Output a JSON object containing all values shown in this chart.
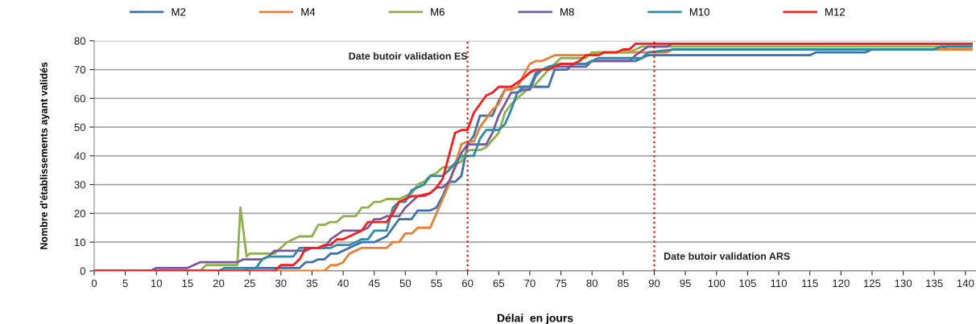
{
  "chart_data": {
    "type": "line",
    "xlabel": "Délai  en jours",
    "ylabel": "Nombre d'établissements ayant validés",
    "xlim": [
      0,
      141.7
    ],
    "ylim": [
      0,
      80
    ],
    "xticks": [
      0,
      5,
      10,
      15,
      20,
      25,
      30,
      35,
      40,
      45,
      50,
      55,
      60,
      65,
      70,
      75,
      80,
      85,
      90,
      95,
      100,
      105,
      110,
      115,
      120,
      125,
      130,
      135,
      140
    ],
    "yticks": [
      0,
      10,
      20,
      30,
      40,
      50,
      60,
      70,
      80
    ],
    "grid": "y",
    "legend": "top",
    "marker": "none",
    "line_style": "solid",
    "ref_lines": [
      {
        "axis": "x",
        "value": 60,
        "label": "Date butoir validation ES",
        "color": "#ff0000",
        "line_style": "dotted"
      },
      {
        "axis": "x",
        "value": 90,
        "label": "Date butoir validation ARS",
        "color": "#ff0000",
        "line_style": "dotted"
      }
    ],
    "series": [
      {
        "name": "M2",
        "color": "#3a6fb0",
        "x": [
          0,
          24,
          25,
          33,
          34,
          35,
          36,
          37,
          38,
          39,
          41,
          43,
          45,
          47,
          48,
          49,
          51,
          52,
          54,
          55,
          56,
          57,
          58,
          59,
          60,
          61,
          62,
          64,
          65,
          66,
          67,
          68,
          73,
          74,
          76,
          77,
          79,
          80,
          87,
          88,
          89,
          115,
          116,
          124,
          125,
          136,
          137,
          141
        ],
        "values": [
          0,
          0,
          1,
          1,
          3,
          3,
          4,
          4,
          6,
          6,
          8,
          10,
          10,
          12,
          15,
          18,
          18,
          21,
          21,
          22,
          26,
          31,
          31,
          33,
          44,
          47,
          54,
          54,
          59,
          63,
          63,
          64,
          64,
          70,
          70,
          72,
          72,
          73,
          73,
          74,
          75,
          75,
          76,
          76,
          77,
          77,
          78,
          78
        ]
      },
      {
        "name": "M4",
        "color": "#ed7d31",
        "x": [
          0,
          37,
          38,
          39,
          40,
          41,
          42,
          43,
          47,
          48,
          49,
          50,
          51,
          52,
          54,
          55,
          56,
          57,
          58,
          59,
          60,
          61,
          62,
          63,
          64,
          65,
          66,
          67,
          68,
          69,
          70,
          71,
          72,
          73,
          74,
          80,
          81,
          88,
          89,
          92,
          93,
          141
        ],
        "values": [
          0,
          0,
          2,
          2,
          3,
          6,
          7,
          8,
          8,
          10,
          10,
          13,
          13,
          15,
          15,
          20,
          25,
          30,
          37,
          44,
          45,
          45,
          50,
          53,
          56,
          58,
          63,
          63,
          64,
          68,
          72,
          73,
          73,
          74,
          75,
          75,
          76,
          76,
          76,
          76,
          77,
          77
        ]
      },
      {
        "name": "M6",
        "color": "#8db04a",
        "x": [
          0,
          17,
          18,
          23,
          23.5,
          24.5,
          25,
          29,
          30,
          31,
          32,
          33,
          35,
          36,
          37,
          38,
          39,
          40,
          42,
          43,
          44,
          45,
          46,
          47,
          49,
          50,
          51,
          52,
          53,
          54,
          55,
          56,
          57,
          58,
          59,
          60,
          62,
          63,
          65,
          66,
          67,
          69,
          71,
          73,
          75,
          79,
          80,
          86,
          87,
          88,
          141
        ],
        "values": [
          0,
          0,
          2,
          2,
          22,
          5,
          6,
          6,
          8,
          10,
          11,
          12,
          12,
          16,
          16,
          17,
          17,
          19,
          19,
          22,
          22,
          24,
          24,
          25,
          25,
          26,
          27,
          30,
          31,
          33,
          34,
          36,
          36,
          37,
          38,
          42,
          42,
          43,
          48,
          55,
          58,
          62,
          65,
          70,
          74,
          74,
          76,
          76,
          77,
          78,
          78
        ]
      },
      {
        "name": "M8",
        "color": "#7a55a0",
        "x": [
          0,
          9,
          10,
          15,
          17,
          23,
          24,
          27,
          28,
          29,
          34,
          35,
          37,
          38,
          40,
          43,
          44,
          45,
          46,
          47,
          49,
          50,
          51,
          52,
          53,
          54,
          55,
          56,
          57,
          58,
          59,
          60,
          63,
          64,
          65,
          66,
          67,
          68,
          69,
          70,
          71,
          72,
          73,
          74,
          79,
          80,
          86,
          87,
          89,
          92,
          93,
          141
        ],
        "values": [
          0,
          0,
          1,
          1,
          3,
          3,
          4,
          4,
          5,
          7,
          7,
          8,
          8,
          11,
          14,
          14,
          15,
          18,
          18,
          19,
          19,
          22,
          24,
          26,
          26,
          27,
          29,
          29,
          31,
          36,
          41,
          44,
          44,
          48,
          54,
          58,
          62,
          62,
          63,
          63,
          68,
          70,
          70,
          71,
          71,
          73,
          73,
          75,
          78,
          78,
          79,
          79
        ]
      },
      {
        "name": "M10",
        "color": "#2a8aa8",
        "x": [
          0,
          20,
          21,
          26,
          27,
          28,
          32,
          33,
          38,
          39,
          41,
          42,
          43,
          44,
          45,
          47,
          48,
          49,
          50,
          51,
          53,
          54,
          56,
          57,
          59,
          61,
          62,
          63,
          65,
          66,
          67,
          68,
          69,
          70,
          71,
          73,
          75,
          79,
          80,
          81,
          88,
          89,
          93,
          135,
          136,
          141
        ],
        "values": [
          0,
          0,
          1,
          1,
          4,
          5,
          5,
          8,
          8,
          9,
          9,
          10,
          11,
          11,
          14,
          14,
          22,
          24,
          24,
          28,
          30,
          33,
          33,
          35,
          40,
          40,
          46,
          49,
          49,
          51,
          56,
          62,
          64,
          64,
          69,
          71,
          72,
          72,
          73,
          74,
          74,
          76,
          77,
          77,
          78,
          78
        ]
      },
      {
        "name": "M12",
        "color": "#ff1a1a",
        "x": [
          0,
          29,
          30,
          32,
          33,
          34,
          36,
          37,
          38,
          39,
          40,
          42,
          43,
          44,
          47,
          48,
          49,
          50,
          51,
          52,
          54,
          55,
          56,
          57,
          58,
          59,
          60,
          61,
          62,
          63,
          64,
          65,
          67,
          69,
          70,
          71,
          73,
          74,
          75,
          77,
          78,
          79,
          81,
          82,
          84,
          85,
          86,
          87,
          141
        ],
        "values": [
          0,
          0,
          2,
          2,
          4,
          8,
          8,
          9,
          9,
          11,
          11,
          13,
          14,
          17,
          17,
          20,
          24,
          25,
          26,
          26,
          27,
          29,
          32,
          40,
          48,
          49,
          49,
          55,
          58,
          61,
          62,
          64,
          64,
          67,
          69,
          70,
          70,
          71,
          72,
          72,
          73,
          75,
          75,
          76,
          76,
          77,
          77,
          79,
          79
        ]
      }
    ]
  }
}
